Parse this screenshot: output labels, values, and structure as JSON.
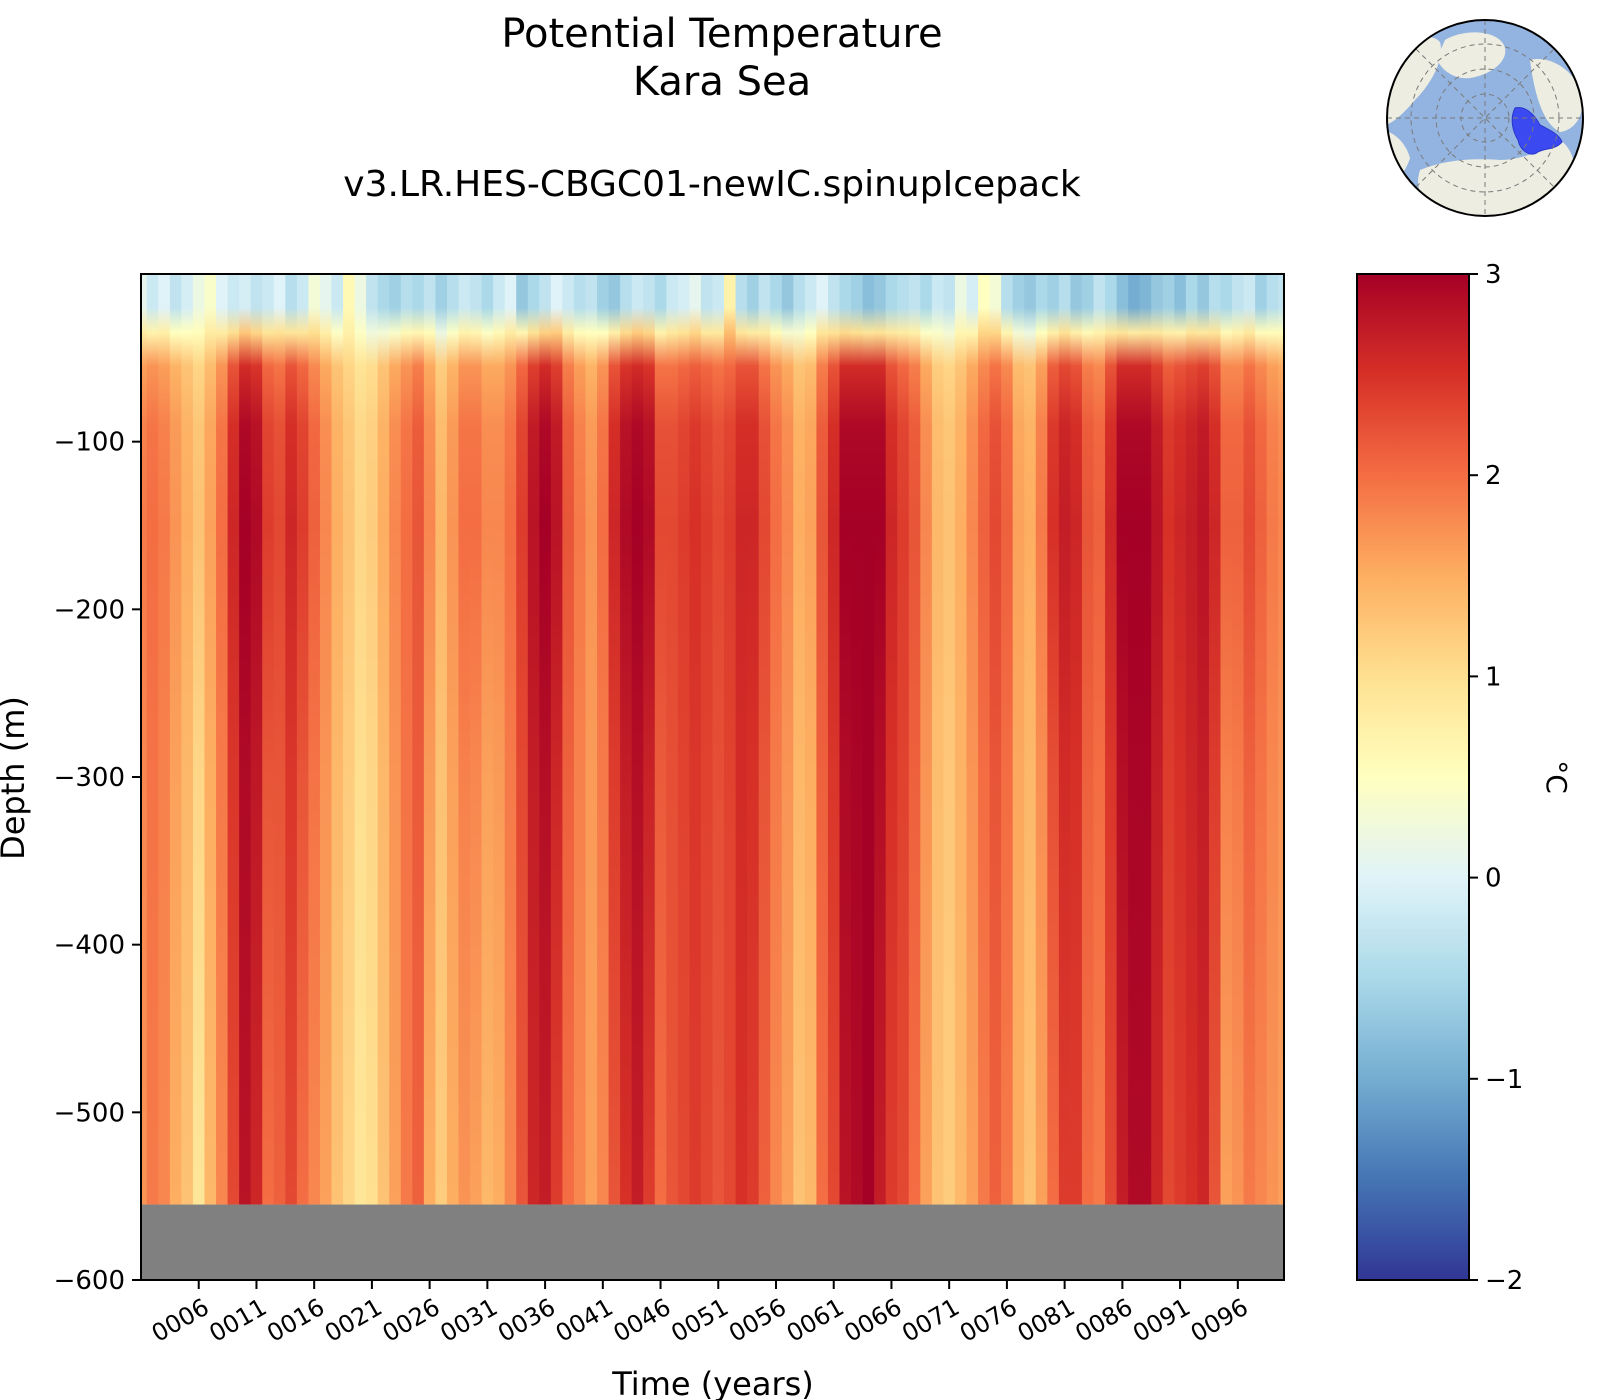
{
  "chart_data": {
    "type": "heatmap",
    "title": "Potential Temperature",
    "subtitle": "Kara Sea",
    "run_name": "v3.LR.HES-CBGC01-newIC.spinupIcepack",
    "xlabel": "Time (years)",
    "ylabel": "Depth (m)",
    "colorbar_label": "°C",
    "colormap": "RdYlBu_r",
    "xlim": [
      1,
      100
    ],
    "ylim": [
      -600,
      0
    ],
    "clim": [
      -2,
      3
    ],
    "x_ticks": [
      6,
      11,
      16,
      21,
      26,
      31,
      36,
      41,
      46,
      51,
      56,
      61,
      66,
      71,
      76,
      81,
      86,
      91,
      96
    ],
    "x_tick_labels": [
      "0006",
      "0011",
      "0016",
      "0021",
      "0026",
      "0031",
      "0036",
      "0041",
      "0046",
      "0051",
      "0056",
      "0061",
      "0066",
      "0071",
      "0076",
      "0081",
      "0086",
      "0091",
      "0096"
    ],
    "y_ticks": [
      -100,
      -200,
      -300,
      -400,
      -500,
      -600
    ],
    "y_tick_labels": [
      "−100",
      "−200",
      "−300",
      "−400",
      "−500",
      "−600"
    ],
    "colorbar_ticks": [
      3,
      2,
      1,
      0,
      -1,
      -2
    ],
    "colorbar_tick_labels": [
      "3",
      "2",
      "1",
      "0",
      "−1",
      "−2"
    ],
    "no_data_below_depth": -555,
    "no_data_color": "#808080",
    "surface_temperature_range": [
      -1.0,
      0.7
    ],
    "subsurface_peak_depth": -150,
    "years": [
      1,
      2,
      3,
      4,
      5,
      6,
      7,
      8,
      9,
      10,
      11,
      12,
      13,
      14,
      15,
      16,
      17,
      18,
      19,
      20,
      21,
      22,
      23,
      24,
      25,
      26,
      27,
      28,
      29,
      30,
      31,
      32,
      33,
      34,
      35,
      36,
      37,
      38,
      39,
      40,
      41,
      42,
      43,
      44,
      45,
      46,
      47,
      48,
      49,
      50,
      51,
      52,
      53,
      54,
      55,
      56,
      57,
      58,
      59,
      60,
      61,
      62,
      63,
      64,
      65,
      66,
      67,
      68,
      69,
      70,
      71,
      72,
      73,
      74,
      75,
      76,
      77,
      78,
      79,
      80,
      81,
      82,
      83,
      84,
      85,
      86,
      87,
      88,
      89,
      90,
      91,
      92,
      93,
      94,
      95,
      96,
      97,
      98,
      99,
      100
    ],
    "deep_temperature": [
      1.7,
      1.9,
      1.8,
      1.5,
      1.3,
      0.9,
      1.4,
      1.8,
      2.3,
      2.8,
      2.6,
      2.0,
      2.1,
      2.3,
      2.0,
      1.8,
      1.6,
      1.3,
      1.1,
      0.9,
      1.0,
      1.3,
      1.6,
      1.9,
      2.1,
      1.5,
      1.2,
      1.5,
      1.7,
      1.6,
      1.4,
      1.5,
      1.8,
      2.2,
      2.6,
      2.7,
      2.4,
      2.0,
      1.8,
      1.6,
      1.8,
      2.2,
      2.5,
      2.7,
      2.4,
      2.0,
      2.2,
      2.3,
      2.4,
      2.3,
      2.2,
      2.3,
      2.5,
      2.4,
      2.1,
      1.8,
      1.6,
      1.3,
      1.4,
      2.0,
      2.3,
      2.8,
      2.9,
      3.0,
      2.7,
      2.4,
      2.3,
      2.0,
      1.6,
      1.3,
      1.2,
      1.4,
      1.6,
      1.9,
      2.1,
      1.9,
      1.5,
      1.3,
      1.6,
      2.0,
      2.4,
      2.4,
      2.0,
      1.9,
      2.3,
      2.7,
      2.9,
      2.9,
      2.6,
      2.3,
      2.4,
      2.5,
      2.6,
      2.2,
      1.6,
      1.7,
      1.9,
      1.8,
      1.7,
      1.6
    ],
    "peak_temperature": [
      1.9,
      2.0,
      1.9,
      1.7,
      1.5,
      1.3,
      1.6,
      2.0,
      2.6,
      3.0,
      2.9,
      2.4,
      2.3,
      2.6,
      2.4,
      2.1,
      1.8,
      1.5,
      1.3,
      1.1,
      1.2,
      1.5,
      1.8,
      2.0,
      2.2,
      1.8,
      1.4,
      1.7,
      2.0,
      2.0,
      1.8,
      1.8,
      2.0,
      2.4,
      2.8,
      3.0,
      2.8,
      2.2,
      1.9,
      1.7,
      2.0,
      2.6,
      2.9,
      3.0,
      2.9,
      2.3,
      2.3,
      2.4,
      2.5,
      2.4,
      2.3,
      2.4,
      2.6,
      2.6,
      2.3,
      2.0,
      1.8,
      1.5,
      1.6,
      2.2,
      2.6,
      3.0,
      3.0,
      3.0,
      3.0,
      2.6,
      2.4,
      2.2,
      1.8,
      1.4,
      1.3,
      1.5,
      1.8,
      2.1,
      2.3,
      2.1,
      1.6,
      1.5,
      1.9,
      2.5,
      2.7,
      2.6,
      2.2,
      2.1,
      2.6,
      3.0,
      3.0,
      3.0,
      2.8,
      2.5,
      2.6,
      2.7,
      2.8,
      2.6,
      2.1,
      2.1,
      2.3,
      2.1,
      1.9,
      1.8
    ],
    "surface_temperature": [
      0.1,
      -0.2,
      0.0,
      -0.3,
      -0.1,
      0.2,
      0.4,
      0.0,
      -0.2,
      -0.1,
      -0.3,
      -0.2,
      0.0,
      -0.4,
      -0.2,
      0.3,
      0.1,
      -0.2,
      0.6,
      0.2,
      -0.3,
      -0.5,
      -0.6,
      -0.4,
      -0.5,
      -0.3,
      -0.6,
      -0.4,
      -0.2,
      -0.3,
      -0.5,
      -0.2,
      0.0,
      -0.7,
      -0.5,
      -0.3,
      0.0,
      -0.2,
      -0.4,
      -0.3,
      -0.6,
      -0.7,
      -0.4,
      -0.2,
      -0.3,
      -0.5,
      -0.2,
      -0.1,
      0.1,
      -0.3,
      -0.2,
      0.7,
      -0.4,
      -0.6,
      -0.3,
      -0.5,
      -0.7,
      -0.4,
      -0.2,
      0.0,
      -0.3,
      -0.5,
      -0.6,
      -0.8,
      -0.7,
      -0.5,
      -0.4,
      -0.3,
      -0.5,
      -0.2,
      -0.3,
      0.2,
      -0.1,
      0.5,
      0.3,
      -0.4,
      -0.6,
      -0.7,
      -0.5,
      -0.6,
      -0.4,
      -0.7,
      -0.6,
      -0.3,
      -0.5,
      -0.8,
      -1.0,
      -0.9,
      -0.7,
      -0.6,
      -0.8,
      -0.5,
      -0.7,
      -0.4,
      -0.5,
      -0.3,
      -0.2,
      -0.6,
      -0.4,
      -0.3
    ]
  },
  "inset_map": {
    "region_name": "Kara Sea",
    "projection": "north-polar-stereographic",
    "ocean_color": "#93b4e0",
    "land_color": "#eeede1",
    "region_color": "#3a4af0"
  }
}
